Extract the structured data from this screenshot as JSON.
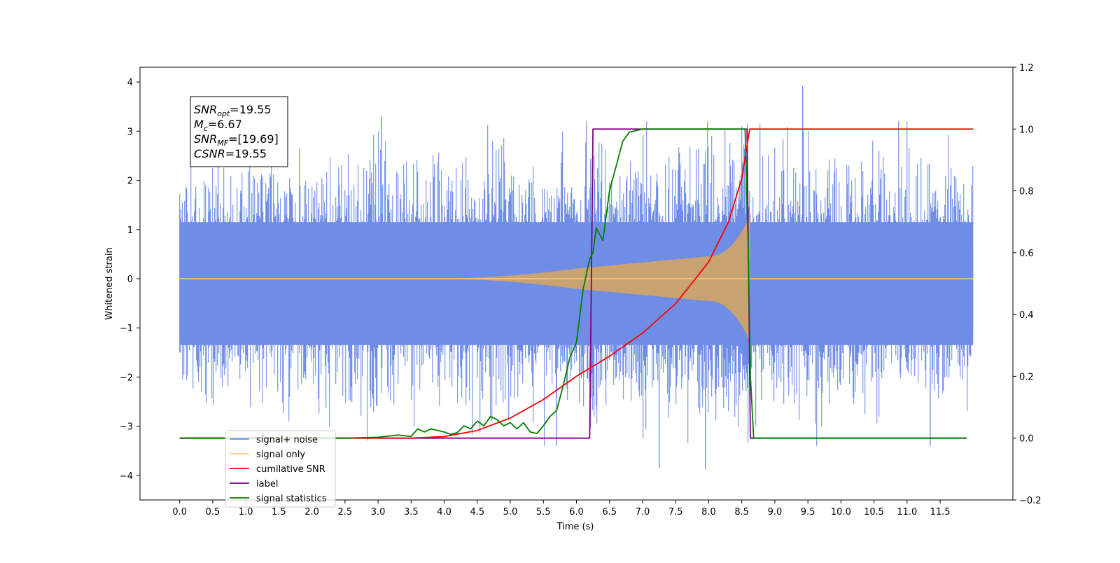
{
  "chart_data": {
    "type": "line",
    "title": "",
    "xlabel": "Time (s)",
    "ylabel": "Whitened strain",
    "xlim": [
      -0.6,
      12.6
    ],
    "ylim": [
      -4.5,
      4.3
    ],
    "y2lim": [
      -0.2,
      1.2
    ],
    "x_ticks": [
      0.0,
      0.5,
      1.0,
      1.5,
      2.0,
      2.5,
      3.0,
      3.5,
      4.0,
      4.5,
      5.0,
      5.5,
      6.0,
      6.5,
      7.0,
      7.5,
      8.0,
      8.5,
      9.0,
      9.5,
      10.0,
      10.5,
      11.0,
      11.5
    ],
    "x_tick_labels": [
      "0.0",
      "0.5",
      "1.0",
      "1.5",
      "2.0",
      "2.5",
      "3.0",
      "3.5",
      "4.0",
      "4.5",
      "5.0",
      "5.5",
      "6.0",
      "6.5",
      "7.0",
      "7.5",
      "8.0",
      "8.5",
      "9.0",
      "9.5",
      "10.0",
      "10.5",
      "11.0",
      "11.5"
    ],
    "y_ticks": [
      -4,
      -3,
      -2,
      -1,
      0,
      1,
      2,
      3,
      4
    ],
    "y_tick_labels": [
      "−4",
      "−3",
      "−2",
      "−1",
      "0",
      "1",
      "2",
      "3",
      "4"
    ],
    "y2_ticks": [
      -0.2,
      0.0,
      0.2,
      0.4,
      0.6,
      0.8,
      1.0,
      1.2
    ],
    "y2_tick_labels": [
      "−0.2",
      "0.0",
      "0.2",
      "0.4",
      "0.6",
      "0.8",
      "1.0",
      "1.2"
    ],
    "grid": false,
    "legend_position": "lower-left",
    "annotation": {
      "lines": [
        {
          "base": "SNR",
          "sub": "opt",
          "rest": "=19.55"
        },
        {
          "base": "M",
          "sub": "c",
          "rest": "=6.67"
        },
        {
          "base": "SNR",
          "sub": "MF",
          "rest": "=[19.69]"
        },
        {
          "base": "CSNR",
          "sub": "",
          "rest": "=19.55"
        }
      ]
    },
    "series": [
      {
        "name": "signal+ noise",
        "axis": "left",
        "color": "#6f8de6",
        "x_range": [
          0.0,
          12.0
        ],
        "envelope_upper": 2.3,
        "envelope_lower": -2.5,
        "peak_max": 3.9,
        "peak_min": -3.9,
        "note_points": [
          [
            9.42,
            3.92
          ],
          [
            7.25,
            -3.85
          ],
          [
            7.95,
            -3.88
          ],
          [
            3.05,
            3.3
          ],
          [
            5.7,
            -3.4
          ],
          [
            11.35,
            -3.4
          ]
        ]
      },
      {
        "name": "signal only",
        "axis": "left",
        "color": "#c9a271",
        "legend_color": "#ffc87a",
        "x_range": [
          0.0,
          12.0
        ],
        "chirp": {
          "onset": 4.0,
          "merger": 8.62,
          "amp_at_6": 0.2,
          "amp_at_8": 0.45,
          "amp_peak": 1.25
        }
      },
      {
        "name": "cumilative SNR",
        "axis": "right",
        "color": "#ff0000",
        "x": [
          0.0,
          3.5,
          4.0,
          4.5,
          5.0,
          5.5,
          6.0,
          6.5,
          7.0,
          7.5,
          8.0,
          8.3,
          8.5,
          8.62,
          9.0,
          10.0,
          11.0,
          12.0
        ],
        "y": [
          0.0,
          0.0,
          0.005,
          0.025,
          0.065,
          0.125,
          0.2,
          0.265,
          0.34,
          0.435,
          0.57,
          0.7,
          0.84,
          1.0,
          1.0,
          1.0,
          1.0,
          1.0
        ]
      },
      {
        "name": "label",
        "axis": "right",
        "color": "#800080",
        "x": [
          0.0,
          6.2,
          6.25,
          8.58,
          8.63,
          11.9
        ],
        "y": [
          0.0,
          0.0,
          1.0,
          1.0,
          0.0,
          0.0
        ]
      },
      {
        "name": "signal statistics",
        "axis": "right",
        "color": "#008000",
        "x": [
          0.0,
          2.5,
          3.0,
          3.3,
          3.5,
          3.6,
          3.7,
          3.8,
          3.9,
          4.0,
          4.1,
          4.2,
          4.3,
          4.4,
          4.5,
          4.6,
          4.7,
          4.8,
          4.9,
          5.0,
          5.1,
          5.2,
          5.3,
          5.4,
          5.5,
          5.6,
          5.7,
          5.8,
          5.9,
          6.0,
          6.1,
          6.2,
          6.25,
          6.3,
          6.4,
          6.5,
          6.6,
          6.7,
          6.8,
          7.0,
          8.55,
          8.6,
          8.63,
          8.68,
          11.9
        ],
        "y": [
          0.0,
          0.0,
          0.003,
          0.01,
          0.006,
          0.03,
          0.02,
          0.03,
          0.025,
          0.02,
          0.012,
          0.018,
          0.04,
          0.03,
          0.055,
          0.04,
          0.07,
          0.06,
          0.04,
          0.05,
          0.03,
          0.05,
          0.02,
          0.015,
          0.04,
          0.07,
          0.09,
          0.17,
          0.26,
          0.31,
          0.48,
          0.58,
          0.6,
          0.68,
          0.64,
          0.8,
          0.88,
          0.96,
          0.99,
          1.0,
          1.0,
          0.6,
          0.2,
          0.0,
          0.0
        ]
      }
    ]
  }
}
